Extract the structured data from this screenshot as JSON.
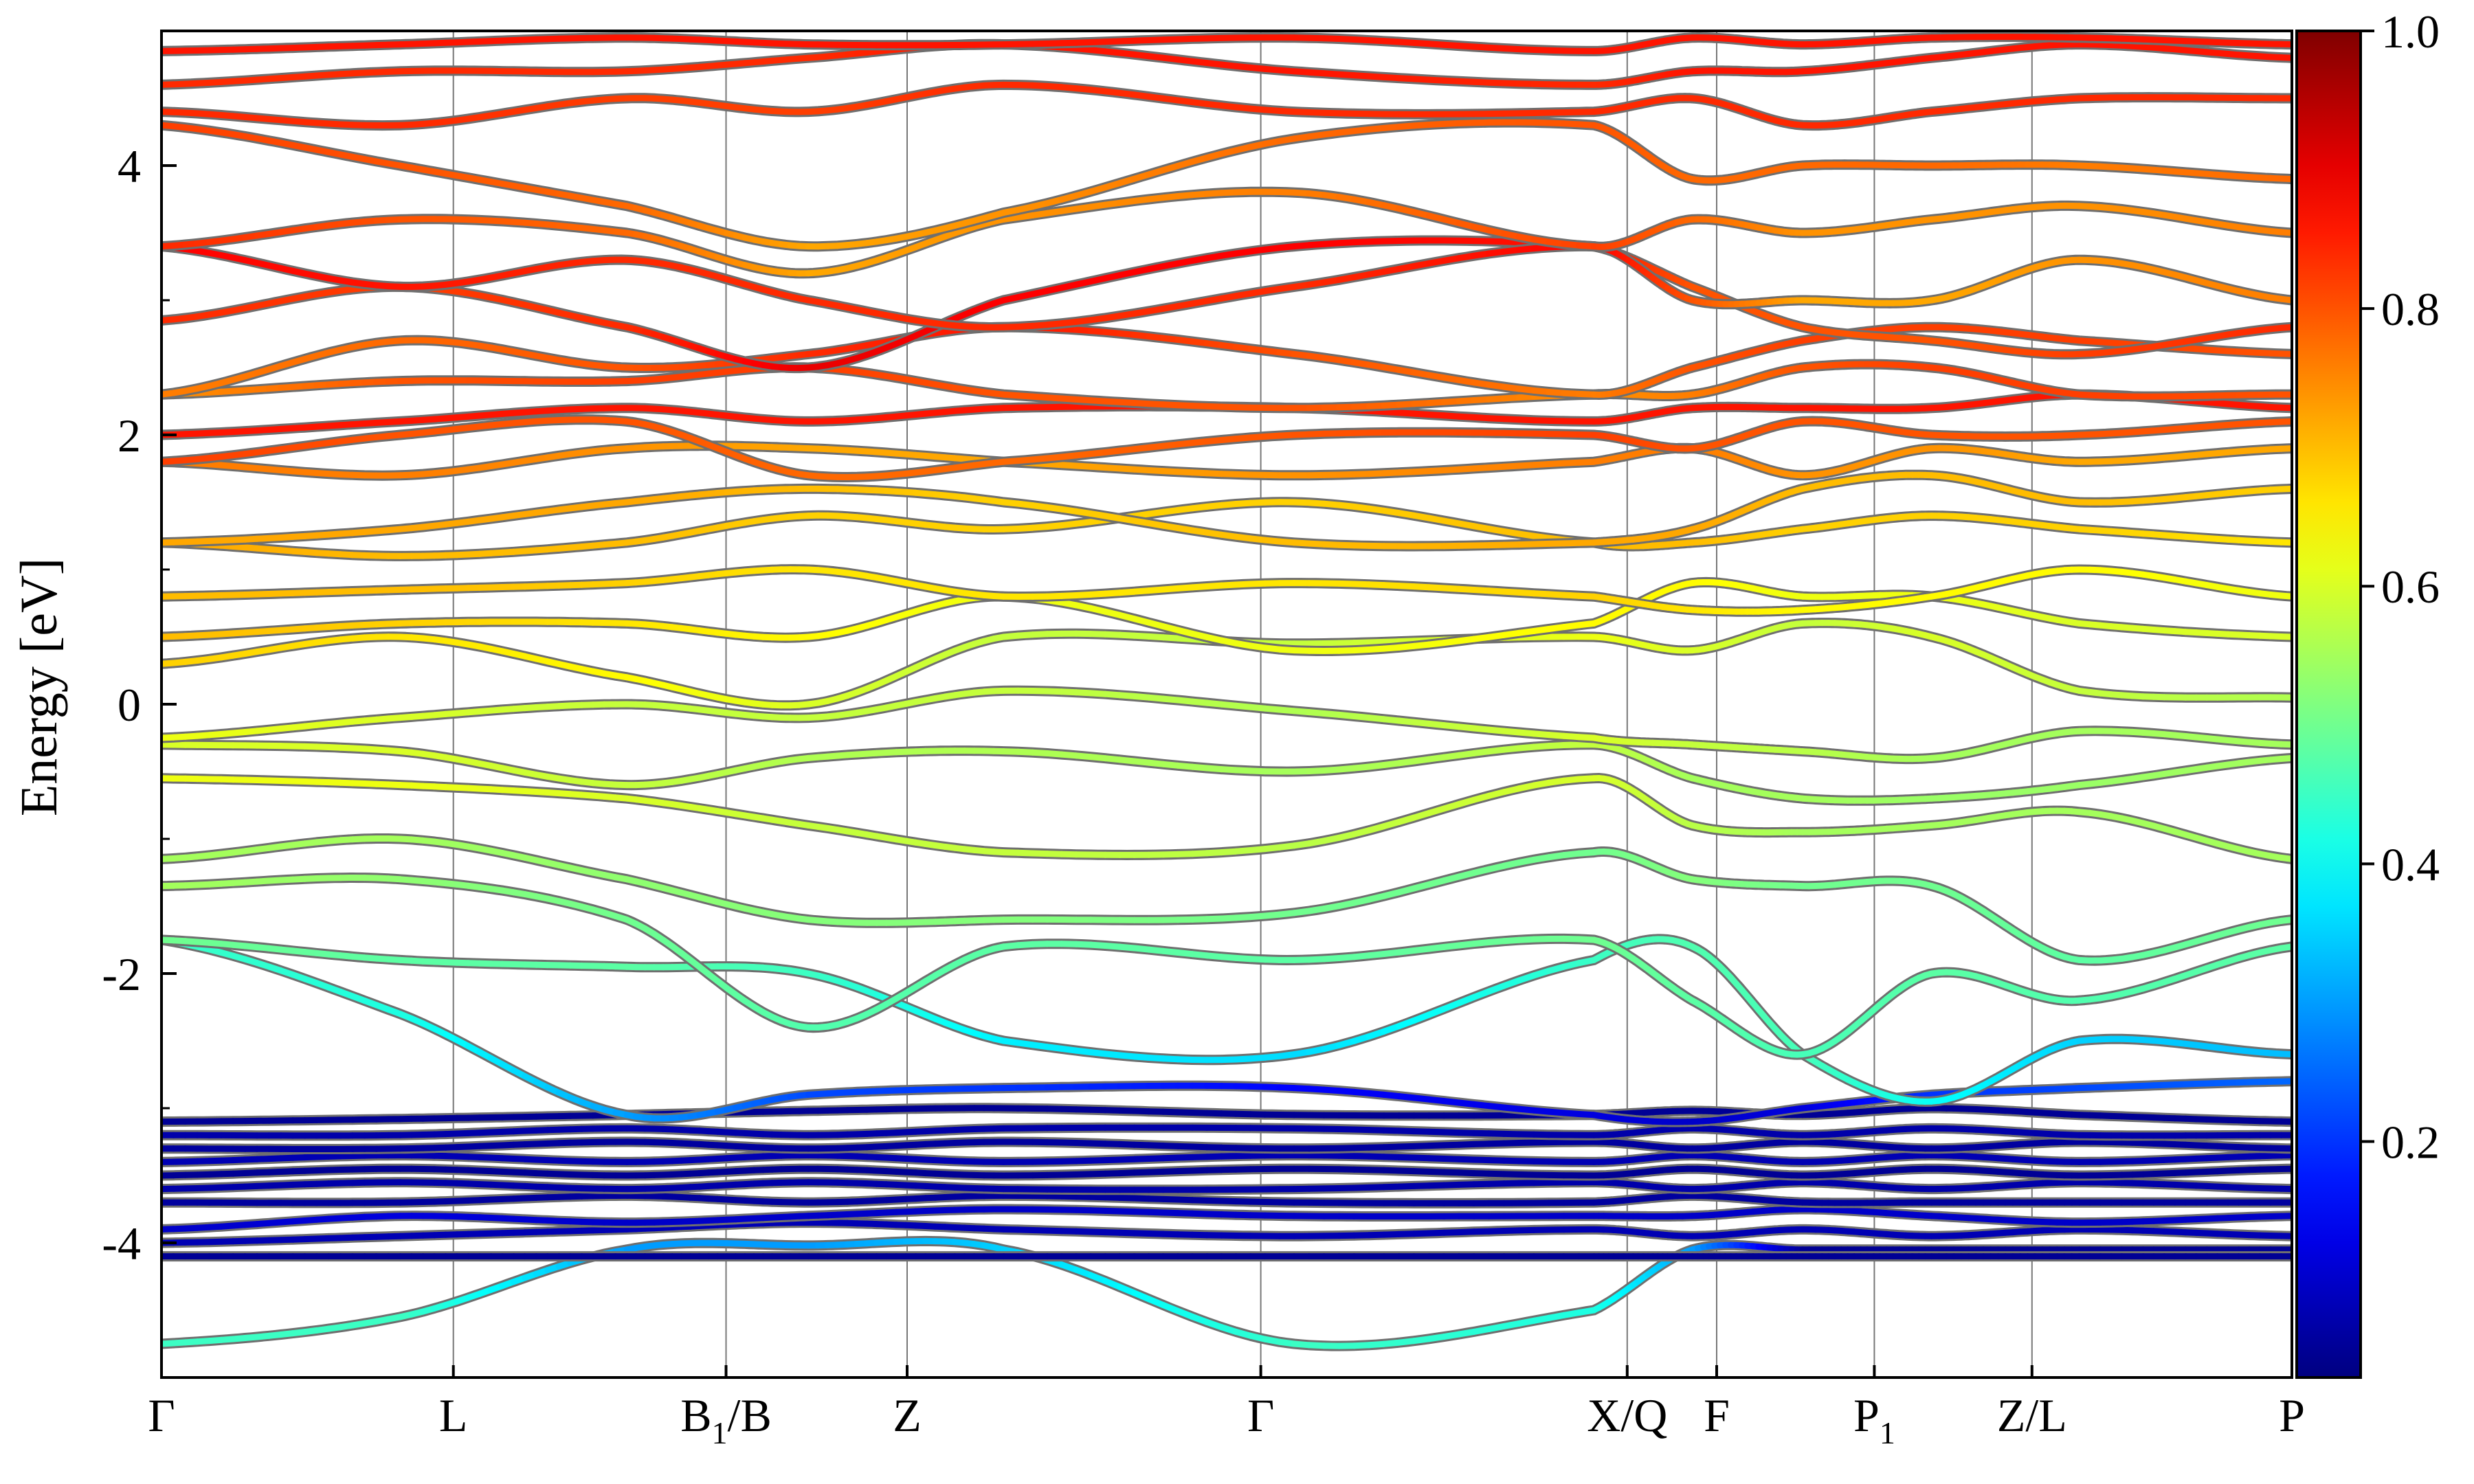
{
  "chart_data": {
    "type": "line",
    "ylabel": "Energy [eV]",
    "xlabel": "",
    "ylim": [
      -5,
      5
    ],
    "y_ticks": [
      4,
      2,
      0,
      -2,
      -4
    ],
    "y_tick_labels": [
      "4",
      "2",
      "0",
      "-2",
      "-4"
    ],
    "kpath": [
      {
        "x": 0.0,
        "label": "Γ",
        "sub": ""
      },
      {
        "x": 0.137,
        "label": "L",
        "sub": ""
      },
      {
        "x": 0.265,
        "label": "B",
        "sub": "1",
        "suffix": "/B"
      },
      {
        "x": 0.35,
        "label": "Z",
        "sub": ""
      },
      {
        "x": 0.516,
        "label": "Γ",
        "sub": ""
      },
      {
        "x": 0.688,
        "label": "X/Q",
        "sub": ""
      },
      {
        "x": 0.73,
        "label": "F",
        "sub": ""
      },
      {
        "x": 0.804,
        "label": "P",
        "sub": "1"
      },
      {
        "x": 0.878,
        "label": "Z/L",
        "sub": ""
      },
      {
        "x": 1.0,
        "label": "P",
        "sub": ""
      }
    ],
    "colorbar": {
      "colormap": "jet",
      "range": [
        0.03,
        1.0
      ],
      "ticks": [
        1.0,
        0.8,
        0.6,
        0.4,
        0.2
      ],
      "tick_labels": [
        "1.0",
        "0.8",
        "0.6",
        "0.4",
        "0.2"
      ]
    },
    "bands": [
      {
        "energies": [
          -4.75,
          -4.55,
          -4.05,
          -4.02,
          -4.05,
          -4.75,
          -4.5,
          -4.05,
          -4.05,
          -4.05,
          -4.05,
          -4.05
        ],
        "weights": [
          0.45,
          0.45,
          0.3,
          0.3,
          0.35,
          0.45,
          0.42,
          0.3,
          0.05,
          0.05,
          0.05,
          0.05
        ]
      },
      {
        "energies": [
          -4.1,
          -4.1,
          -4.1,
          -4.1,
          -4.1,
          -4.1,
          -4.1,
          -4.1,
          -4.1,
          -4.1,
          -4.1,
          -4.1
        ],
        "weights": [
          0.05,
          0.05,
          0.05,
          0.05,
          0.05,
          0.05,
          0.05,
          0.05,
          0.05,
          0.05,
          0.05,
          0.05
        ]
      },
      {
        "energies": [
          -4.0,
          -3.95,
          -3.9,
          -3.85,
          -3.9,
          -3.95,
          -3.9,
          -3.95,
          -3.9,
          -3.95,
          -3.9,
          -3.95
        ],
        "weights": [
          0.08,
          0.08,
          0.08,
          0.08,
          0.08,
          0.08,
          0.08,
          0.08,
          0.08,
          0.08,
          0.08,
          0.08
        ]
      },
      {
        "energies": [
          -3.9,
          -3.8,
          -3.85,
          -3.8,
          -3.75,
          -3.8,
          -3.8,
          -3.8,
          -3.75,
          -3.8,
          -3.85,
          -3.8
        ],
        "weights": [
          0.1,
          0.12,
          0.1,
          0.1,
          0.1,
          0.1,
          0.1,
          0.1,
          0.1,
          0.1,
          0.1,
          0.1
        ]
      },
      {
        "energies": [
          -3.7,
          -3.7,
          -3.65,
          -3.7,
          -3.65,
          -3.7,
          -3.7,
          -3.65,
          -3.7,
          -3.7,
          -3.7,
          -3.7
        ],
        "weights": [
          0.06,
          0.06,
          0.06,
          0.06,
          0.06,
          0.06,
          0.06,
          0.06,
          0.06,
          0.06,
          0.06,
          0.06
        ]
      },
      {
        "energies": [
          -3.6,
          -3.55,
          -3.6,
          -3.55,
          -3.6,
          -3.6,
          -3.55,
          -3.6,
          -3.55,
          -3.6,
          -3.55,
          -3.6
        ],
        "weights": [
          0.07,
          0.07,
          0.07,
          0.07,
          0.07,
          0.07,
          0.07,
          0.07,
          0.07,
          0.07,
          0.07,
          0.07
        ]
      },
      {
        "energies": [
          -3.5,
          -3.45,
          -3.5,
          -3.45,
          -3.5,
          -3.45,
          -3.5,
          -3.45,
          -3.5,
          -3.45,
          -3.5,
          -3.45
        ],
        "weights": [
          0.05,
          0.05,
          0.05,
          0.05,
          0.05,
          0.05,
          0.05,
          0.05,
          0.05,
          0.05,
          0.05,
          0.05
        ]
      },
      {
        "energies": [
          -3.4,
          -3.35,
          -3.4,
          -3.35,
          -3.4,
          -3.35,
          -3.4,
          -3.35,
          -3.4,
          -3.35,
          -3.4,
          -3.35
        ],
        "weights": [
          0.08,
          0.08,
          0.08,
          0.08,
          0.08,
          0.08,
          0.08,
          0.08,
          0.08,
          0.08,
          0.08,
          0.08
        ]
      },
      {
        "energies": [
          -3.3,
          -3.3,
          -3.25,
          -3.3,
          -3.25,
          -3.3,
          -3.25,
          -3.3,
          -3.25,
          -3.3,
          -3.25,
          -3.3
        ],
        "weights": [
          0.06,
          0.06,
          0.06,
          0.06,
          0.06,
          0.06,
          0.06,
          0.06,
          0.06,
          0.06,
          0.06,
          0.06
        ]
      },
      {
        "energies": [
          -3.2,
          -3.2,
          -3.15,
          -3.2,
          -3.15,
          -3.15,
          -3.2,
          -3.15,
          -3.2,
          -3.15,
          -3.2,
          -3.2
        ],
        "weights": [
          0.07,
          0.07,
          0.07,
          0.07,
          0.07,
          0.07,
          0.07,
          0.07,
          0.07,
          0.07,
          0.07,
          0.07
        ]
      },
      {
        "energies": [
          -3.1,
          -3.08,
          -3.05,
          -3.02,
          -3.0,
          -3.05,
          -3.05,
          -3.02,
          -3.05,
          -3.0,
          -3.05,
          -3.1
        ],
        "weights": [
          0.05,
          0.05,
          0.05,
          0.05,
          0.05,
          0.05,
          0.05,
          0.05,
          0.05,
          0.05,
          0.05,
          0.05
        ]
      },
      {
        "energies": [
          -1.75,
          -2.3,
          -3.05,
          -2.9,
          -2.85,
          -2.85,
          -3.05,
          -3.1,
          -3.0,
          -2.9,
          -2.85,
          -2.8
        ],
        "weights": [
          0.45,
          0.42,
          0.3,
          0.22,
          0.2,
          0.15,
          0.12,
          0.1,
          0.12,
          0.2,
          0.22,
          0.25
        ]
      },
      {
        "energies": [
          -1.75,
          -1.9,
          -1.95,
          -2.0,
          -2.5,
          -2.6,
          -1.9,
          -1.8,
          -2.6,
          -2.95,
          -2.5,
          -2.6
        ],
        "weights": [
          0.5,
          0.48,
          0.48,
          0.45,
          0.38,
          0.36,
          0.45,
          0.47,
          0.46,
          0.4,
          0.35,
          0.33
        ]
      },
      {
        "energies": [
          -1.35,
          -1.3,
          -1.6,
          -2.4,
          -1.8,
          -1.9,
          -1.75,
          -2.2,
          -2.6,
          -2.0,
          -2.2,
          -1.8
        ],
        "weights": [
          0.55,
          0.53,
          0.5,
          0.47,
          0.48,
          0.48,
          0.5,
          0.48,
          0.46,
          0.48,
          0.47,
          0.48
        ]
      },
      {
        "energies": [
          -1.15,
          -1.0,
          -1.3,
          -1.6,
          -1.6,
          -1.55,
          -1.1,
          -1.3,
          -1.35,
          -1.35,
          -1.9,
          -1.6
        ],
        "weights": [
          0.55,
          0.55,
          0.53,
          0.52,
          0.52,
          0.5,
          0.5,
          0.52,
          0.5,
          0.5,
          0.48,
          0.5
        ]
      },
      {
        "energies": [
          -0.55,
          -0.6,
          -0.7,
          -0.9,
          -1.1,
          -1.05,
          -0.55,
          -0.9,
          -0.95,
          -0.9,
          -0.8,
          -1.15
        ],
        "weights": [
          0.62,
          0.62,
          0.6,
          0.58,
          0.58,
          0.57,
          0.6,
          0.57,
          0.55,
          0.55,
          0.55,
          0.55
        ]
      },
      {
        "energies": [
          -0.3,
          -0.35,
          -0.6,
          -0.4,
          -0.35,
          -0.5,
          -0.3,
          -0.55,
          -0.7,
          -0.7,
          -0.6,
          -0.4
        ],
        "weights": [
          0.6,
          0.6,
          0.58,
          0.56,
          0.56,
          0.55,
          0.58,
          0.55,
          0.55,
          0.54,
          0.54,
          0.55
        ]
      },
      {
        "energies": [
          -0.25,
          -0.1,
          0.0,
          -0.1,
          0.1,
          -0.05,
          -0.25,
          -0.3,
          -0.35,
          -0.4,
          -0.2,
          -0.3
        ],
        "weights": [
          0.62,
          0.6,
          0.58,
          0.58,
          0.58,
          0.56,
          0.6,
          0.58,
          0.57,
          0.55,
          0.55,
          0.55
        ]
      },
      {
        "energies": [
          0.3,
          0.5,
          0.2,
          0.0,
          0.5,
          0.45,
          0.5,
          0.4,
          0.6,
          0.5,
          0.1,
          0.05
        ],
        "weights": [
          0.68,
          0.66,
          0.64,
          0.6,
          0.58,
          0.58,
          0.62,
          0.6,
          0.58,
          0.6,
          0.58,
          0.56
        ]
      },
      {
        "energies": [
          0.5,
          0.6,
          0.6,
          0.5,
          0.8,
          0.4,
          0.6,
          0.9,
          0.8,
          0.8,
          0.6,
          0.5
        ],
        "weights": [
          0.7,
          0.68,
          0.66,
          0.64,
          0.62,
          0.62,
          0.64,
          0.64,
          0.62,
          0.62,
          0.6,
          0.6
        ]
      },
      {
        "energies": [
          0.8,
          0.85,
          0.9,
          1.0,
          0.8,
          0.9,
          0.8,
          0.7,
          0.7,
          0.8,
          1.0,
          0.8
        ],
        "weights": [
          0.7,
          0.7,
          0.68,
          0.66,
          0.66,
          0.66,
          0.68,
          0.66,
          0.64,
          0.64,
          0.64,
          0.62
        ]
      },
      {
        "energies": [
          1.2,
          1.1,
          1.2,
          1.4,
          1.3,
          1.5,
          1.2,
          1.2,
          1.3,
          1.4,
          1.3,
          1.2
        ],
        "weights": [
          0.72,
          0.7,
          0.7,
          0.68,
          0.68,
          0.68,
          0.7,
          0.7,
          0.68,
          0.68,
          0.68,
          0.66
        ]
      },
      {
        "energies": [
          1.2,
          1.3,
          1.5,
          1.6,
          1.5,
          1.2,
          1.2,
          1.3,
          1.6,
          1.7,
          1.5,
          1.6
        ],
        "weights": [
          0.72,
          0.72,
          0.72,
          0.7,
          0.68,
          0.7,
          0.72,
          0.72,
          0.7,
          0.7,
          0.7,
          0.68
        ]
      },
      {
        "energies": [
          1.8,
          1.7,
          1.9,
          1.9,
          1.8,
          1.7,
          1.8,
          1.9,
          1.7,
          1.9,
          1.8,
          1.9
        ],
        "weights": [
          0.76,
          0.76,
          0.74,
          0.72,
          0.72,
          0.74,
          0.76,
          0.76,
          0.74,
          0.74,
          0.72,
          0.72
        ]
      },
      {
        "energies": [
          1.8,
          2.0,
          2.1,
          1.7,
          1.8,
          2.0,
          2.0,
          1.9,
          2.1,
          2.0,
          2.0,
          2.1
        ],
        "weights": [
          0.82,
          0.8,
          0.8,
          0.78,
          0.78,
          0.8,
          0.82,
          0.8,
          0.8,
          0.8,
          0.8,
          0.8
        ]
      },
      {
        "energies": [
          2.0,
          2.1,
          2.2,
          2.1,
          2.2,
          2.2,
          2.1,
          2.2,
          2.2,
          2.2,
          2.3,
          2.2
        ],
        "weights": [
          0.86,
          0.86,
          0.86,
          0.86,
          0.86,
          0.86,
          0.86,
          0.86,
          0.86,
          0.86,
          0.86,
          0.86
        ]
      },
      {
        "energies": [
          2.3,
          2.4,
          2.4,
          2.5,
          2.3,
          2.2,
          2.3,
          2.3,
          2.5,
          2.5,
          2.3,
          2.3
        ],
        "weights": [
          0.74,
          0.8,
          0.82,
          0.82,
          0.8,
          0.8,
          0.74,
          0.76,
          0.8,
          0.82,
          0.82,
          0.8
        ]
      },
      {
        "energies": [
          2.3,
          2.7,
          2.5,
          2.6,
          2.8,
          2.6,
          2.3,
          2.5,
          2.7,
          2.8,
          2.7,
          2.6
        ],
        "weights": [
          0.76,
          0.78,
          0.8,
          0.84,
          0.86,
          0.8,
          0.76,
          0.8,
          0.82,
          0.82,
          0.82,
          0.8
        ]
      },
      {
        "energies": [
          2.85,
          3.1,
          2.8,
          2.5,
          3.0,
          3.4,
          3.4,
          3.1,
          2.8,
          2.7,
          2.6,
          2.8
        ],
        "weights": [
          0.84,
          0.82,
          0.84,
          0.9,
          0.88,
          0.88,
          0.86,
          0.8,
          0.8,
          0.8,
          0.82,
          0.84
        ]
      },
      {
        "energies": [
          3.4,
          3.1,
          3.3,
          3.0,
          2.8,
          3.1,
          3.4,
          3.0,
          3.0,
          3.0,
          3.3,
          3.0
        ],
        "weights": [
          0.88,
          0.86,
          0.84,
          0.84,
          0.84,
          0.84,
          0.88,
          0.8,
          0.72,
          0.72,
          0.74,
          0.76
        ]
      },
      {
        "energies": [
          3.4,
          3.6,
          3.5,
          3.2,
          3.6,
          3.8,
          3.4,
          3.6,
          3.5,
          3.6,
          3.7,
          3.5
        ],
        "weights": [
          0.84,
          0.8,
          0.78,
          0.72,
          0.74,
          0.76,
          0.82,
          0.78,
          0.74,
          0.74,
          0.74,
          0.76
        ]
      },
      {
        "energies": [
          4.3,
          4.0,
          3.7,
          3.4,
          3.65,
          4.2,
          4.3,
          3.9,
          4.0,
          4.0,
          4.0,
          3.9
        ],
        "weights": [
          0.82,
          0.8,
          0.78,
          0.72,
          0.74,
          0.78,
          0.8,
          0.78,
          0.78,
          0.78,
          0.76,
          0.78
        ]
      },
      {
        "energies": [
          4.4,
          4.3,
          4.5,
          4.4,
          4.6,
          4.4,
          4.4,
          4.5,
          4.3,
          4.4,
          4.5,
          4.5
        ],
        "weights": [
          0.84,
          0.84,
          0.82,
          0.82,
          0.84,
          0.84,
          0.84,
          0.84,
          0.84,
          0.84,
          0.84,
          0.84
        ]
      },
      {
        "energies": [
          4.6,
          4.7,
          4.7,
          4.8,
          4.9,
          4.7,
          4.6,
          4.7,
          4.7,
          4.8,
          4.9,
          4.8
        ],
        "weights": [
          0.84,
          0.84,
          0.84,
          0.84,
          0.86,
          0.86,
          0.84,
          0.86,
          0.86,
          0.86,
          0.86,
          0.86
        ]
      },
      {
        "energies": [
          4.85,
          4.9,
          4.95,
          4.9,
          4.9,
          4.95,
          4.85,
          4.95,
          4.9,
          4.95,
          4.95,
          4.9
        ],
        "weights": [
          0.86,
          0.86,
          0.86,
          0.86,
          0.86,
          0.86,
          0.86,
          0.86,
          0.86,
          0.86,
          0.86,
          0.86
        ]
      }
    ]
  }
}
